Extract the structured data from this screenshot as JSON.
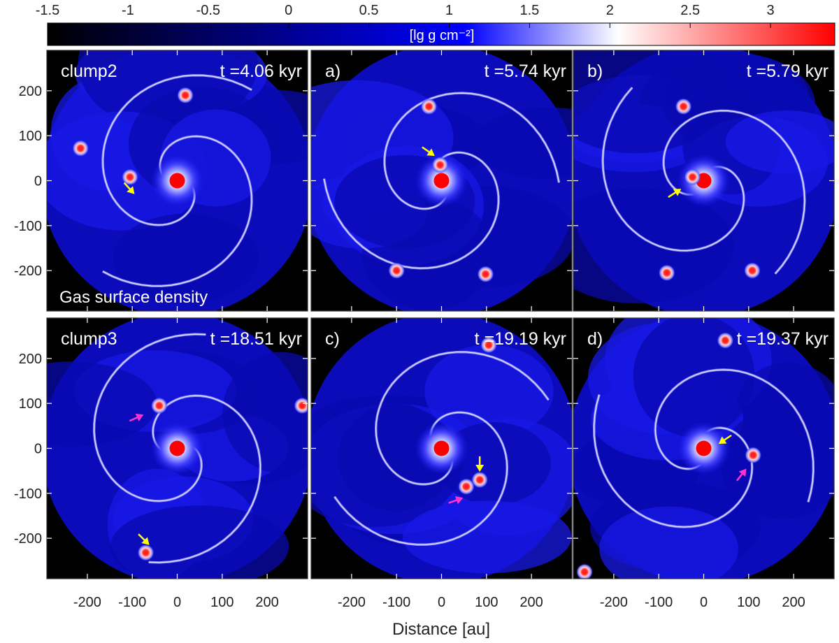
{
  "chart_data": {
    "type": "heatmap",
    "colorbar": {
      "label": "[lg g cm⁻²]",
      "ticks": [
        "-1.5",
        "-1",
        "-0.5",
        "0",
        "0.5",
        "1",
        "1.5",
        "2",
        "2.5",
        "3"
      ],
      "tick_values": [
        -1.5,
        -1,
        -0.5,
        0,
        0.5,
        1,
        1.5,
        2,
        2.5,
        3
      ],
      "range": [
        -1.5,
        3.4
      ],
      "colors": [
        "#000000",
        "#0000ff",
        "#ffffff",
        "#ff0000"
      ],
      "color_stops": [
        -1.5,
        1.1,
        2.05,
        3.4
      ]
    },
    "xlabel": "Distance [au]",
    "x_ticks": [
      "-200",
      "-100",
      "0",
      "100",
      "200"
    ],
    "y_ticks": [
      "200",
      "100",
      "0",
      "-100",
      "-200"
    ],
    "tick_values": [
      -200,
      -100,
      0,
      100,
      200
    ],
    "xlim": [
      -290,
      290
    ],
    "ylim": [
      -290,
      290
    ],
    "annotation": "Gas surface density",
    "central_star": {
      "x": 0,
      "y": 0,
      "color": "#ff0000"
    },
    "arrow_colors": {
      "yellow": "#ffff00",
      "magenta": "#ff33cc"
    },
    "panels": [
      {
        "id": "clump2",
        "label": "clump2",
        "time": "t =4.06 kyr",
        "clumps": [
          [
            -105,
            8
          ],
          [
            -215,
            72
          ],
          [
            18,
            190
          ]
        ],
        "arrows": [
          {
            "x": -95,
            "y": -30,
            "dx": 1,
            "dy": -1.1,
            "color": "yellow"
          }
        ]
      },
      {
        "id": "a",
        "label": "a)",
        "time": "t =5.74 kyr",
        "clumps": [
          [
            -3,
            35
          ],
          [
            -28,
            165
          ],
          [
            -100,
            -200
          ],
          [
            98,
            -208
          ]
        ],
        "arrows": [
          {
            "x": -15,
            "y": 55,
            "dx": 1,
            "dy": -0.7,
            "color": "yellow"
          }
        ]
      },
      {
        "id": "b",
        "label": "b)",
        "time": "t =5.79 kyr",
        "clumps": [
          [
            -25,
            8
          ],
          [
            -45,
            165
          ],
          [
            -82,
            -205
          ],
          [
            108,
            -200
          ]
        ],
        "arrows": [
          {
            "x": -50,
            "y": -18,
            "dx": 1,
            "dy": 0.65,
            "color": "yellow"
          }
        ]
      },
      {
        "id": "clump3",
        "label": "clump3",
        "time": "t =18.51 kyr",
        "clumps": [
          [
            -40,
            95
          ],
          [
            -70,
            -232
          ],
          [
            278,
            95
          ]
        ],
        "arrows": [
          {
            "x": -75,
            "y": 75,
            "dx": 1,
            "dy": 0.45,
            "color": "magenta"
          },
          {
            "x": -62,
            "y": -215,
            "dx": 0.9,
            "dy": -0.9,
            "color": "yellow"
          }
        ]
      },
      {
        "id": "c",
        "label": "c)",
        "time": "t =19.19 kyr",
        "clumps": [
          [
            55,
            -85
          ],
          [
            85,
            -70
          ],
          [
            105,
            230
          ]
        ],
        "arrows": [
          {
            "x": 48,
            "y": -110,
            "dx": 1.4,
            "dy": 0.5,
            "color": "magenta"
          },
          {
            "x": 85,
            "y": -52,
            "dx": 0,
            "dy": -1,
            "color": "yellow"
          }
        ]
      },
      {
        "id": "d",
        "label": "d)",
        "time": "t =19.37 kyr",
        "clumps": [
          [
            110,
            -15
          ],
          [
            48,
            240
          ],
          [
            -265,
            -275
          ]
        ],
        "arrows": [
          {
            "x": 95,
            "y": -45,
            "dx": 0.75,
            "dy": 0.95,
            "color": "magenta"
          },
          {
            "x": 33,
            "y": 10,
            "dx": -0.9,
            "dy": -0.6,
            "color": "yellow"
          }
        ]
      }
    ]
  }
}
